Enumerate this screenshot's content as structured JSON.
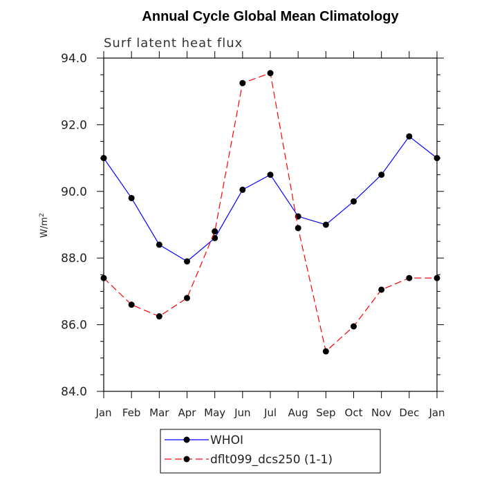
{
  "chart_data": {
    "type": "line",
    "title": "Annual Cycle Global Mean Climatology",
    "subtitle": "Surf latent heat flux",
    "ylabel": "W/m",
    "ylabel_sup": "2",
    "xlabel": "",
    "categories": [
      "Jan",
      "Feb",
      "Mar",
      "Apr",
      "May",
      "Jun",
      "Jul",
      "Aug",
      "Sep",
      "Oct",
      "Nov",
      "Dec",
      "Jan"
    ],
    "ylim": [
      84.0,
      94.0
    ],
    "yticks": [
      84.0,
      86.0,
      88.0,
      90.0,
      92.0,
      94.0
    ],
    "ytick_labels": [
      "84.0",
      "86.0",
      "88.0",
      "90.0",
      "92.0",
      "94.0"
    ],
    "legend_position": "bottom",
    "series": [
      {
        "name": "WHOI",
        "color": "#0000ff",
        "dash": "solid",
        "values": [
          91.0,
          89.8,
          88.4,
          87.9,
          88.6,
          90.05,
          90.5,
          89.25,
          89.0,
          89.7,
          90.5,
          91.65,
          91.0
        ]
      },
      {
        "name": "dflt099_dcs250 (1-1)",
        "color": "#ff0000",
        "dash": "dashed",
        "values": [
          87.4,
          86.6,
          86.25,
          86.8,
          88.8,
          93.25,
          93.55,
          88.9,
          85.2,
          85.95,
          87.05,
          87.4,
          87.4
        ]
      }
    ]
  }
}
